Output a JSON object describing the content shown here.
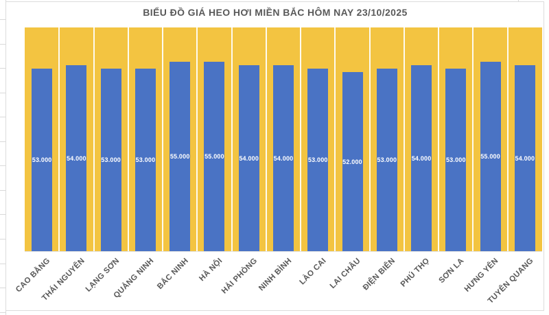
{
  "chart_data": {
    "type": "bar",
    "title": "BIỂU ĐỒ GIÁ HEO HƠI MIỀN BẮC HÔM NAY 23/10/2025",
    "categories": [
      "CAO BẰNG",
      "THÁI NGUYÊN",
      "LẠNG SƠN",
      "QUẢNG NINH",
      "BẮC NINH",
      "HÀ NỘI",
      "HẢI PHÒNG",
      "NINH BÌNH",
      "LÀO CAI",
      "LAI CHÂU",
      "ĐIỆN BIÊN",
      "PHÚ THỌ",
      "SƠN LA",
      "HƯNG YÊN",
      "TUYÊN QUANG"
    ],
    "values": [
      53000,
      54000,
      53000,
      53000,
      55000,
      55000,
      54000,
      54000,
      53000,
      52000,
      53000,
      54000,
      53000,
      55000,
      54000
    ],
    "value_labels": [
      "53.000",
      "54.000",
      "53.000",
      "53.000",
      "55.000",
      "55.000",
      "54.000",
      "54.000",
      "53.000",
      "52.000",
      "53.000",
      "54.000",
      "53.000",
      "55.000",
      "54.000"
    ],
    "xlabel": "",
    "ylabel": "",
    "ylim": [
      0,
      65000
    ],
    "grid": "vertical white separators between categories, no horizontal gridlines, no visible value axis",
    "legend_position": "none",
    "data_label_position": "center",
    "colors": {
      "bar": "#4A73C4",
      "plot_background": "#F3C441",
      "data_label_text": "#FFFFFF",
      "axis_text": "#595959",
      "title_text": "#595959",
      "separator": "#FFFFFF",
      "frame_border": "#DCDCDC",
      "sheet_gridline": "#D9D9D9"
    }
  }
}
